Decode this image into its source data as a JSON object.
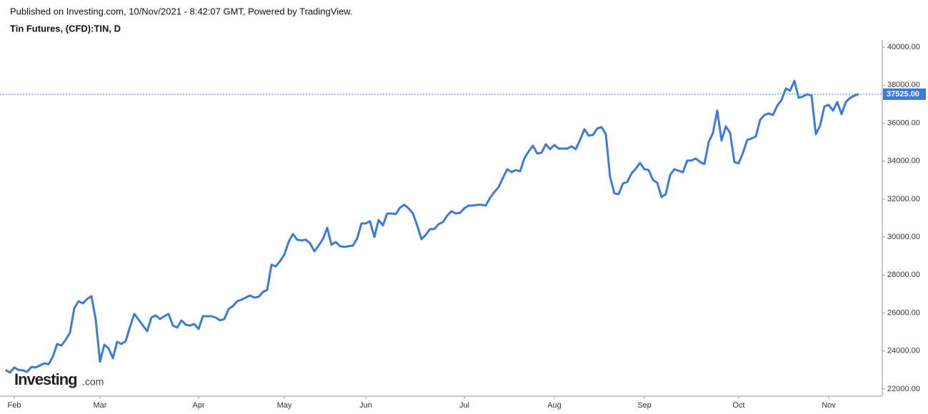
{
  "chart_data": {
    "type": "line",
    "subtitle": "Published on Investing.com, 10/Nov/2021 - 8:42:07 GMT, Powered by TradingView.",
    "title": "Tin Futures, (CFD):TIN, D",
    "watermark": {
      "brand": "Investing",
      "suffix": ".com"
    },
    "categories": [
      null,
      null,
      "Feb",
      null,
      null,
      null,
      null,
      null,
      null,
      null,
      null,
      null,
      null,
      null,
      null,
      null,
      null,
      null,
      null,
      null,
      null,
      null,
      "Mar",
      null,
      null,
      null,
      null,
      null,
      null,
      null,
      null,
      null,
      null,
      null,
      null,
      null,
      null,
      null,
      null,
      null,
      null,
      null,
      null,
      null,
      null,
      "Apr",
      null,
      null,
      null,
      null,
      null,
      null,
      null,
      null,
      null,
      null,
      null,
      null,
      null,
      null,
      null,
      null,
      null,
      null,
      null,
      "May",
      null,
      null,
      null,
      null,
      null,
      null,
      null,
      null,
      null,
      null,
      null,
      null,
      null,
      null,
      null,
      null,
      null,
      null,
      "Jun",
      null,
      null,
      null,
      null,
      null,
      null,
      null,
      null,
      null,
      null,
      null,
      null,
      null,
      null,
      null,
      null,
      null,
      null,
      null,
      null,
      null,
      null,
      "Jul",
      null,
      null,
      null,
      null,
      null,
      null,
      null,
      null,
      null,
      null,
      null,
      null,
      null,
      null,
      null,
      null,
      null,
      null,
      null,
      null,
      "Aug",
      null,
      null,
      null,
      null,
      null,
      null,
      null,
      null,
      null,
      null,
      null,
      null,
      null,
      null,
      null,
      null,
      null,
      null,
      null,
      null,
      "Sep",
      null,
      null,
      null,
      null,
      null,
      null,
      null,
      null,
      null,
      null,
      null,
      null,
      null,
      null,
      null,
      null,
      null,
      null,
      null,
      null,
      null,
      "Oct",
      null,
      null,
      null,
      null,
      null,
      null,
      null,
      null,
      null,
      null,
      null,
      null,
      null,
      null,
      null,
      null,
      null,
      null,
      null,
      null,
      "Nov",
      null,
      null,
      null,
      null,
      null,
      null,
      null
    ],
    "series": [
      {
        "name": "TIN",
        "color": "#3d7bd6",
        "values": [
          23000,
          22860,
          23130,
          23000,
          22980,
          22900,
          23160,
          23130,
          23240,
          23350,
          23300,
          23700,
          24370,
          24290,
          24590,
          24970,
          26250,
          26620,
          26510,
          26740,
          26890,
          25650,
          23430,
          24330,
          24140,
          23620,
          24480,
          24370,
          24520,
          25270,
          25950,
          25650,
          25340,
          25040,
          25760,
          25870,
          25680,
          25830,
          25950,
          25340,
          25230,
          25610,
          25380,
          25340,
          25420,
          25160,
          25830,
          25830,
          25830,
          25760,
          25610,
          25680,
          26210,
          26360,
          26620,
          26700,
          26810,
          26920,
          26810,
          26850,
          27110,
          27220,
          28540,
          28460,
          28730,
          29070,
          29740,
          30160,
          29860,
          29820,
          29860,
          29670,
          29250,
          29550,
          29890,
          30490,
          29590,
          29740,
          29520,
          29480,
          29520,
          29550,
          29930,
          30720,
          30720,
          30830,
          30000,
          30900,
          30610,
          31240,
          31240,
          31210,
          31550,
          31700,
          31510,
          31240,
          30610,
          29890,
          30120,
          30420,
          30420,
          30680,
          30790,
          31130,
          31360,
          31240,
          31280,
          31510,
          31660,
          31660,
          31700,
          31700,
          31660,
          32070,
          32370,
          32630,
          33120,
          33570,
          33420,
          33530,
          33460,
          34140,
          34510,
          34810,
          34400,
          34440,
          34890,
          34630,
          34850,
          34660,
          34660,
          34660,
          34780,
          34630,
          35120,
          35680,
          35340,
          35380,
          35720,
          35790,
          35420,
          33160,
          32300,
          32260,
          32820,
          32900,
          33350,
          33610,
          33910,
          33570,
          33530,
          33010,
          32860,
          32110,
          32260,
          33270,
          33570,
          33490,
          33420,
          34030,
          34030,
          34140,
          33950,
          33840,
          35000,
          35490,
          36660,
          35080,
          35830,
          35490,
          33950,
          33880,
          34440,
          35120,
          35190,
          35300,
          36170,
          36430,
          36510,
          36430,
          36920,
          37220,
          37820,
          37710,
          38230,
          37330,
          37410,
          37520,
          37450,
          35420,
          35870,
          36880,
          36960,
          36660,
          37110,
          36470,
          37110,
          37330,
          37450,
          37525
        ]
      }
    ],
    "price_line": {
      "value": 37525,
      "label": "37525.00"
    },
    "ylim": [
      21620,
      40380
    ],
    "yticks": [
      {
        "value": 22000,
        "label": "22000.00"
      },
      {
        "value": 24000,
        "label": "24000.00"
      },
      {
        "value": 26000,
        "label": "26000.00"
      },
      {
        "value": 28000,
        "label": "28000.00"
      },
      {
        "value": 30000,
        "label": "30000.00"
      },
      {
        "value": 32000,
        "label": "32000.00"
      },
      {
        "value": 34000,
        "label": "34000.00"
      },
      {
        "value": 36000,
        "label": "36000.00"
      },
      {
        "value": 38000,
        "label": "38000.00"
      },
      {
        "value": 40000,
        "label": "40000.00"
      }
    ],
    "grid": false
  }
}
